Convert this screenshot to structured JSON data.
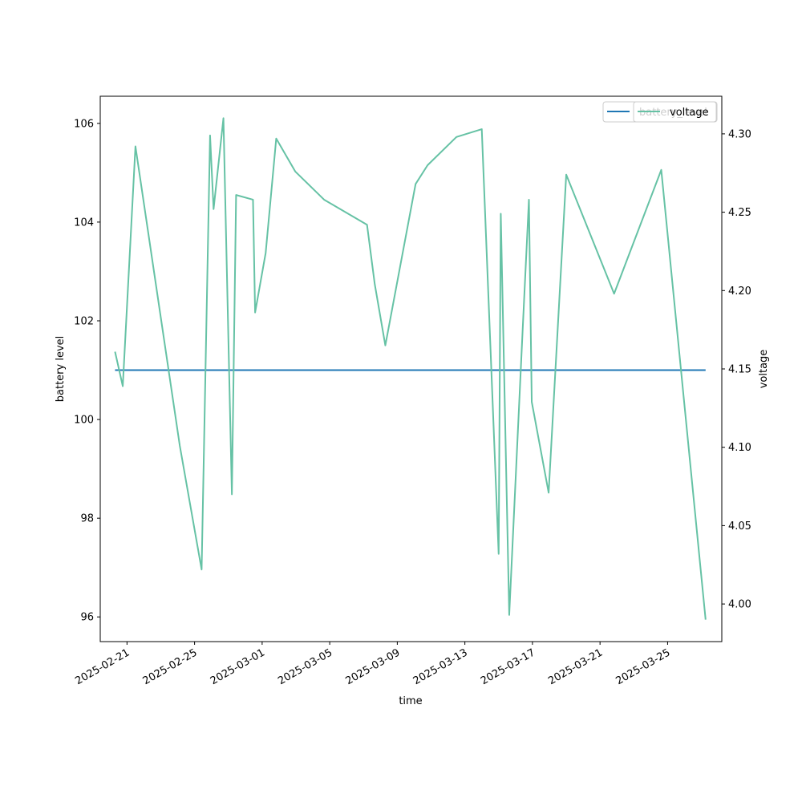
{
  "chart_data": {
    "type": "line",
    "xlabel": "time",
    "y_left_label": "battery level",
    "y_right_label": "voltage",
    "xlim": [
      "2025-02-19T10:00",
      "2025-03-28T05:00"
    ],
    "x_ticks": [
      "2025-02-21",
      "2025-02-25",
      "2025-03-01",
      "2025-03-05",
      "2025-03-09",
      "2025-03-13",
      "2025-03-17",
      "2025-03-21",
      "2025-03-25"
    ],
    "y_left_lim": [
      95.5,
      106.55
    ],
    "y_left_ticks": [
      96,
      98,
      100,
      102,
      104,
      106
    ],
    "y_right_lim": [
      3.976,
      4.324
    ],
    "y_right_ticks": [
      4.0,
      4.05,
      4.1,
      4.15,
      4.2,
      4.25,
      4.3
    ],
    "y_right_tick_labels": [
      "4.00",
      "4.05",
      "4.10",
      "4.15",
      "4.20",
      "4.25",
      "4.30"
    ],
    "grid": false,
    "series": [
      {
        "name": "battery_level",
        "axis": "left",
        "color": "#1f77b4",
        "x": [
          "2025-02-20T07:00",
          "2025-03-27T06:00"
        ],
        "y": [
          101,
          101
        ]
      },
      {
        "name": "voltage",
        "axis": "right",
        "color": "#66c2a5",
        "x": [
          "2025-02-20T07:00",
          "2025-02-20T18:00",
          "2025-02-21T12:00",
          "2025-02-24T03:00",
          "2025-02-25T10:00",
          "2025-02-25T22:00",
          "2025-02-26T03:00",
          "2025-02-26T17:00",
          "2025-02-27T05:00",
          "2025-02-27T11:00",
          "2025-02-28T11:00",
          "2025-02-28T14:00",
          "2025-03-01T05:00",
          "2025-03-01T20:00",
          "2025-03-02T23:00",
          "2025-03-04T16:00",
          "2025-03-07T05:00",
          "2025-03-07T16:00",
          "2025-03-08T07:00",
          "2025-03-10T02:00",
          "2025-03-10T19:00",
          "2025-03-12T12:00",
          "2025-03-14T00:00",
          "2025-03-15T00:00",
          "2025-03-15T03:00",
          "2025-03-15T15:00",
          "2025-03-16T10:00",
          "2025-03-16T19:00",
          "2025-03-16T23:00",
          "2025-03-17T23:00",
          "2025-03-19T00:00",
          "2025-03-21T20:00",
          "2025-03-24T15:00",
          "2025-03-27T06:00"
        ],
        "y": [
          4.161,
          4.139,
          4.292,
          4.101,
          4.022,
          4.299,
          4.252,
          4.31,
          4.07,
          4.261,
          4.258,
          4.186,
          4.224,
          4.297,
          4.276,
          4.258,
          4.242,
          4.204,
          4.165,
          4.268,
          4.28,
          4.298,
          4.303,
          4.032,
          4.249,
          3.993,
          4.174,
          4.258,
          4.129,
          4.071,
          4.274,
          4.198,
          4.277,
          3.99
        ]
      }
    ],
    "legend": {
      "placement": "top-right",
      "overlapping": true,
      "entries": [
        "battery_level",
        "voltage"
      ]
    }
  }
}
